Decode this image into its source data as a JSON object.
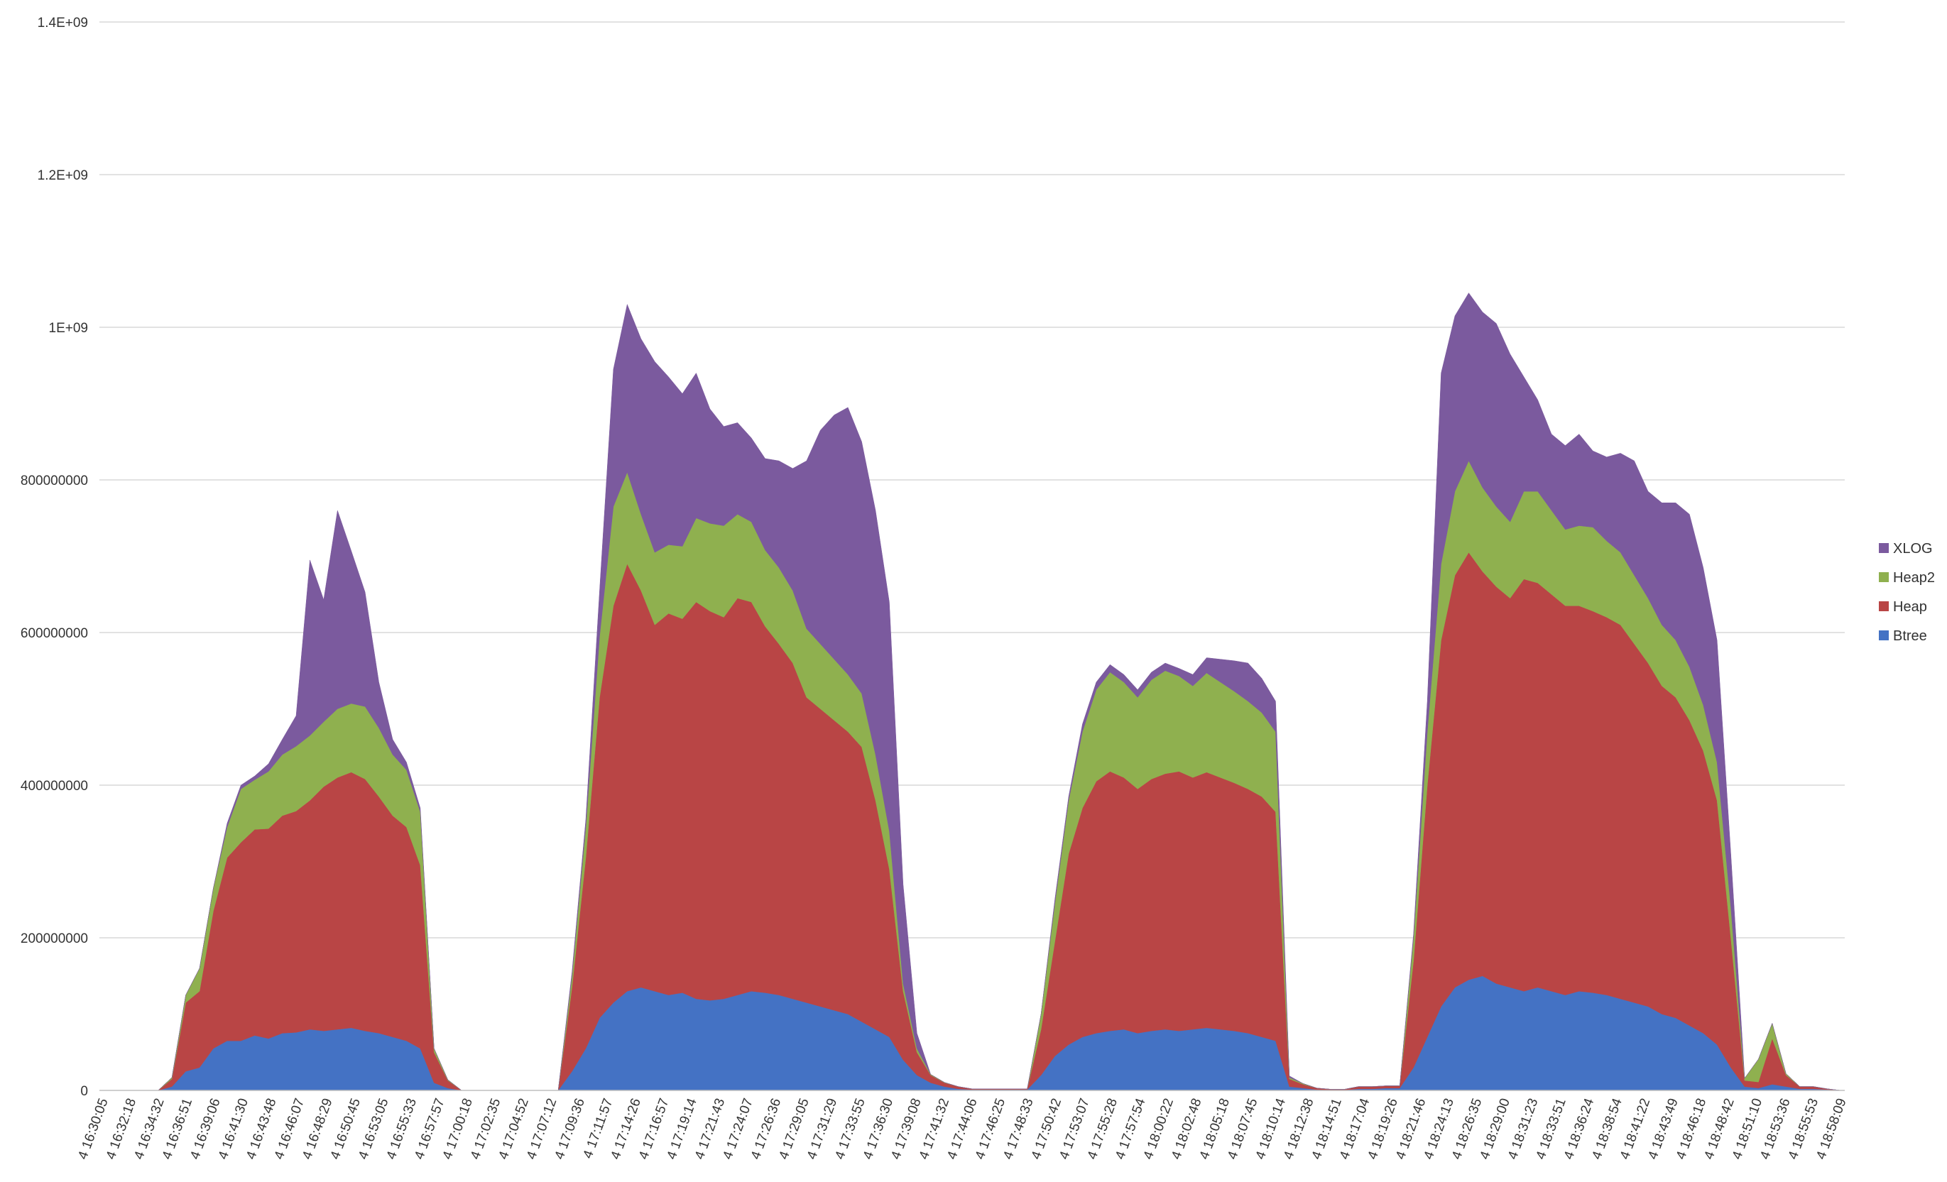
{
  "chart_data": {
    "type": "area",
    "stacked": true,
    "title": "",
    "xlabel": "",
    "ylabel": "",
    "ylim": [
      0,
      1400000000
    ],
    "y_ticks": [
      {
        "value": 0,
        "label": "0"
      },
      {
        "value": 200000000,
        "label": "200000000"
      },
      {
        "value": 400000000,
        "label": "400000000"
      },
      {
        "value": 600000000,
        "label": "600000000"
      },
      {
        "value": 800000000,
        "label": "800000000"
      },
      {
        "value": 1000000000,
        "label": "1E+09"
      },
      {
        "value": 1200000000,
        "label": "1.2E+09"
      },
      {
        "value": 1400000000,
        "label": "1.4E+09"
      }
    ],
    "grid": "horizontal",
    "legend_position": "right",
    "x_tick_labels": [
      "4 16:30:05",
      "4 16:32:18",
      "4 16:34:32",
      "4 16:36:51",
      "4 16:39:06",
      "4 16:41:30",
      "4 16:43:48",
      "4 16:46:07",
      "4 16:48:29",
      "4 16:50:45",
      "4 16:53:05",
      "4 16:55:33",
      "4 16:57:57",
      "4 17:00:18",
      "4 17:02:35",
      "4 17:04:52",
      "4 17:07:12",
      "4 17:09:36",
      "4 17:11:57",
      "4 17:14:26",
      "4 17:16:57",
      "4 17:19:14",
      "4 17:21:43",
      "4 17:24:07",
      "4 17:26:36",
      "4 17:29:05",
      "4 17:31:29",
      "4 17:33:55",
      "4 17:36:30",
      "4 17:39:08",
      "4 17:41:32",
      "4 17:44:06",
      "4 17:46:25",
      "4 17:48:33",
      "4 17:50:42",
      "4 17:53:07",
      "4 17:55:28",
      "4 17:57:54",
      "4 18:00:22",
      "4 18:02:48",
      "4 18:05:18",
      "4 18:07:45",
      "4 18:10:14",
      "4 18:12:38",
      "4 18:14:51",
      "4 18:17:04",
      "4 18:19:26",
      "4 18:21:46",
      "4 18:24:13",
      "4 18:26:35",
      "4 18:29:00",
      "4 18:31:23",
      "4 18:33:51",
      "4 18:36:24",
      "4 18:38:54",
      "4 18:41:22",
      "4 18:43:49",
      "4 18:46:18",
      "4 18:48:42",
      "4 18:51:10",
      "4 18:53:36",
      "4 18:55:53",
      "4 18:58:09"
    ],
    "series": [
      {
        "name": "Btree",
        "color": "#4472C4",
        "values": [
          0,
          0,
          0,
          0,
          0,
          5000000,
          25000000,
          30000000,
          55000000,
          65000000,
          65000000,
          72000000,
          68000000,
          75000000,
          76000000,
          80000000,
          78000000,
          80000000,
          82000000,
          78000000,
          75000000,
          70000000,
          65000000,
          55000000,
          10000000,
          3000000,
          0,
          0,
          0,
          0,
          0,
          0,
          0,
          0,
          25000000,
          55000000,
          95000000,
          115000000,
          130000000,
          135000000,
          130000000,
          125000000,
          128000000,
          120000000,
          118000000,
          120000000,
          125000000,
          130000000,
          128000000,
          125000000,
          120000000,
          115000000,
          110000000,
          105000000,
          100000000,
          90000000,
          80000000,
          70000000,
          40000000,
          20000000,
          10000000,
          5000000,
          2000000,
          1000000,
          1000000,
          1000000,
          1000000,
          1000000,
          20000000,
          45000000,
          60000000,
          70000000,
          75000000,
          78000000,
          80000000,
          75000000,
          78000000,
          80000000,
          78000000,
          80000000,
          82000000,
          80000000,
          78000000,
          75000000,
          70000000,
          65000000,
          5000000,
          3000000,
          1000000,
          500000,
          500000,
          2000000,
          2000000,
          3000000,
          3000000,
          30000000,
          70000000,
          110000000,
          135000000,
          145000000,
          150000000,
          140000000,
          135000000,
          130000000,
          135000000,
          130000000,
          125000000,
          130000000,
          128000000,
          125000000,
          120000000,
          115000000,
          110000000,
          100000000,
          95000000,
          85000000,
          75000000,
          60000000,
          30000000,
          5000000,
          3000000,
          8000000,
          5000000,
          2000000,
          2000000,
          1000000,
          0
        ]
      },
      {
        "name": "Heap",
        "color": "#B94545",
        "values": [
          0,
          0,
          0,
          0,
          0,
          10000000,
          90000000,
          100000000,
          180000000,
          240000000,
          260000000,
          270000000,
          275000000,
          285000000,
          290000000,
          300000000,
          320000000,
          330000000,
          335000000,
          330000000,
          310000000,
          290000000,
          280000000,
          240000000,
          40000000,
          10000000,
          0,
          0,
          0,
          0,
          0,
          0,
          0,
          0,
          110000000,
          250000000,
          420000000,
          520000000,
          560000000,
          520000000,
          480000000,
          500000000,
          490000000,
          520000000,
          510000000,
          500000000,
          520000000,
          510000000,
          480000000,
          460000000,
          440000000,
          400000000,
          390000000,
          380000000,
          370000000,
          360000000,
          300000000,
          220000000,
          90000000,
          30000000,
          10000000,
          5000000,
          3000000,
          1000000,
          1000000,
          1000000,
          1000000,
          1000000,
          60000000,
          150000000,
          250000000,
          300000000,
          330000000,
          340000000,
          330000000,
          320000000,
          330000000,
          335000000,
          340000000,
          330000000,
          335000000,
          330000000,
          325000000,
          320000000,
          315000000,
          300000000,
          10000000,
          5000000,
          2000000,
          1000000,
          1000000,
          3000000,
          3000000,
          3000000,
          3000000,
          140000000,
          330000000,
          480000000,
          540000000,
          560000000,
          530000000,
          520000000,
          510000000,
          540000000,
          530000000,
          520000000,
          510000000,
          505000000,
          500000000,
          495000000,
          490000000,
          470000000,
          450000000,
          430000000,
          420000000,
          400000000,
          370000000,
          320000000,
          170000000,
          8000000,
          8000000,
          60000000,
          15000000,
          3000000,
          3000000,
          1000000,
          0
        ]
      },
      {
        "name": "Heap2",
        "color": "#8FB04F",
        "values": [
          0,
          0,
          0,
          0,
          0,
          2000000,
          10000000,
          30000000,
          30000000,
          40000000,
          70000000,
          65000000,
          75000000,
          80000000,
          85000000,
          85000000,
          85000000,
          90000000,
          90000000,
          95000000,
          90000000,
          80000000,
          75000000,
          70000000,
          5000000,
          1000000,
          0,
          0,
          0,
          0,
          0,
          0,
          0,
          0,
          15000000,
          40000000,
          80000000,
          130000000,
          120000000,
          100000000,
          95000000,
          90000000,
          95000000,
          110000000,
          115000000,
          120000000,
          110000000,
          105000000,
          100000000,
          100000000,
          95000000,
          90000000,
          85000000,
          80000000,
          75000000,
          70000000,
          60000000,
          50000000,
          10000000,
          5000000,
          1000000,
          500000,
          0,
          0,
          0,
          0,
          0,
          0,
          20000000,
          50000000,
          70000000,
          100000000,
          120000000,
          130000000,
          125000000,
          120000000,
          130000000,
          135000000,
          125000000,
          120000000,
          130000000,
          125000000,
          120000000,
          115000000,
          110000000,
          105000000,
          2000000,
          1000000,
          0,
          0,
          0,
          0,
          0,
          0,
          0,
          30000000,
          70000000,
          100000000,
          110000000,
          120000000,
          110000000,
          105000000,
          100000000,
          115000000,
          120000000,
          110000000,
          100000000,
          105000000,
          110000000,
          100000000,
          95000000,
          90000000,
          85000000,
          80000000,
          75000000,
          70000000,
          60000000,
          50000000,
          40000000,
          3000000,
          30000000,
          20000000,
          2000000,
          0,
          0,
          0,
          0
        ]
      },
      {
        "name": "XLOG",
        "color": "#7B5A9E",
        "values": [
          0,
          0,
          0,
          0,
          0,
          0,
          0,
          0,
          0,
          5000000,
          5000000,
          5000000,
          10000000,
          20000000,
          40000000,
          230000000,
          160000000,
          260000000,
          200000000,
          150000000,
          60000000,
          20000000,
          10000000,
          5000000,
          0,
          0,
          0,
          0,
          0,
          0,
          0,
          0,
          0,
          0,
          5000000,
          10000000,
          60000000,
          180000000,
          220000000,
          230000000,
          250000000,
          220000000,
          200000000,
          190000000,
          150000000,
          130000000,
          120000000,
          110000000,
          120000000,
          140000000,
          160000000,
          220000000,
          280000000,
          320000000,
          350000000,
          330000000,
          320000000,
          300000000,
          130000000,
          20000000,
          0,
          0,
          0,
          0,
          0,
          0,
          0,
          0,
          0,
          5000000,
          5000000,
          10000000,
          10000000,
          10000000,
          10000000,
          10000000,
          10000000,
          10000000,
          10000000,
          15000000,
          20000000,
          30000000,
          40000000,
          50000000,
          45000000,
          40000000,
          2000000,
          0,
          0,
          0,
          0,
          0,
          0,
          0,
          0,
          5000000,
          40000000,
          250000000,
          230000000,
          220000000,
          230000000,
          240000000,
          220000000,
          150000000,
          120000000,
          100000000,
          110000000,
          120000000,
          100000000,
          110000000,
          130000000,
          150000000,
          140000000,
          160000000,
          180000000,
          200000000,
          180000000,
          160000000,
          70000000,
          0,
          0,
          0,
          0,
          0,
          0,
          0,
          0
        ]
      }
    ]
  }
}
